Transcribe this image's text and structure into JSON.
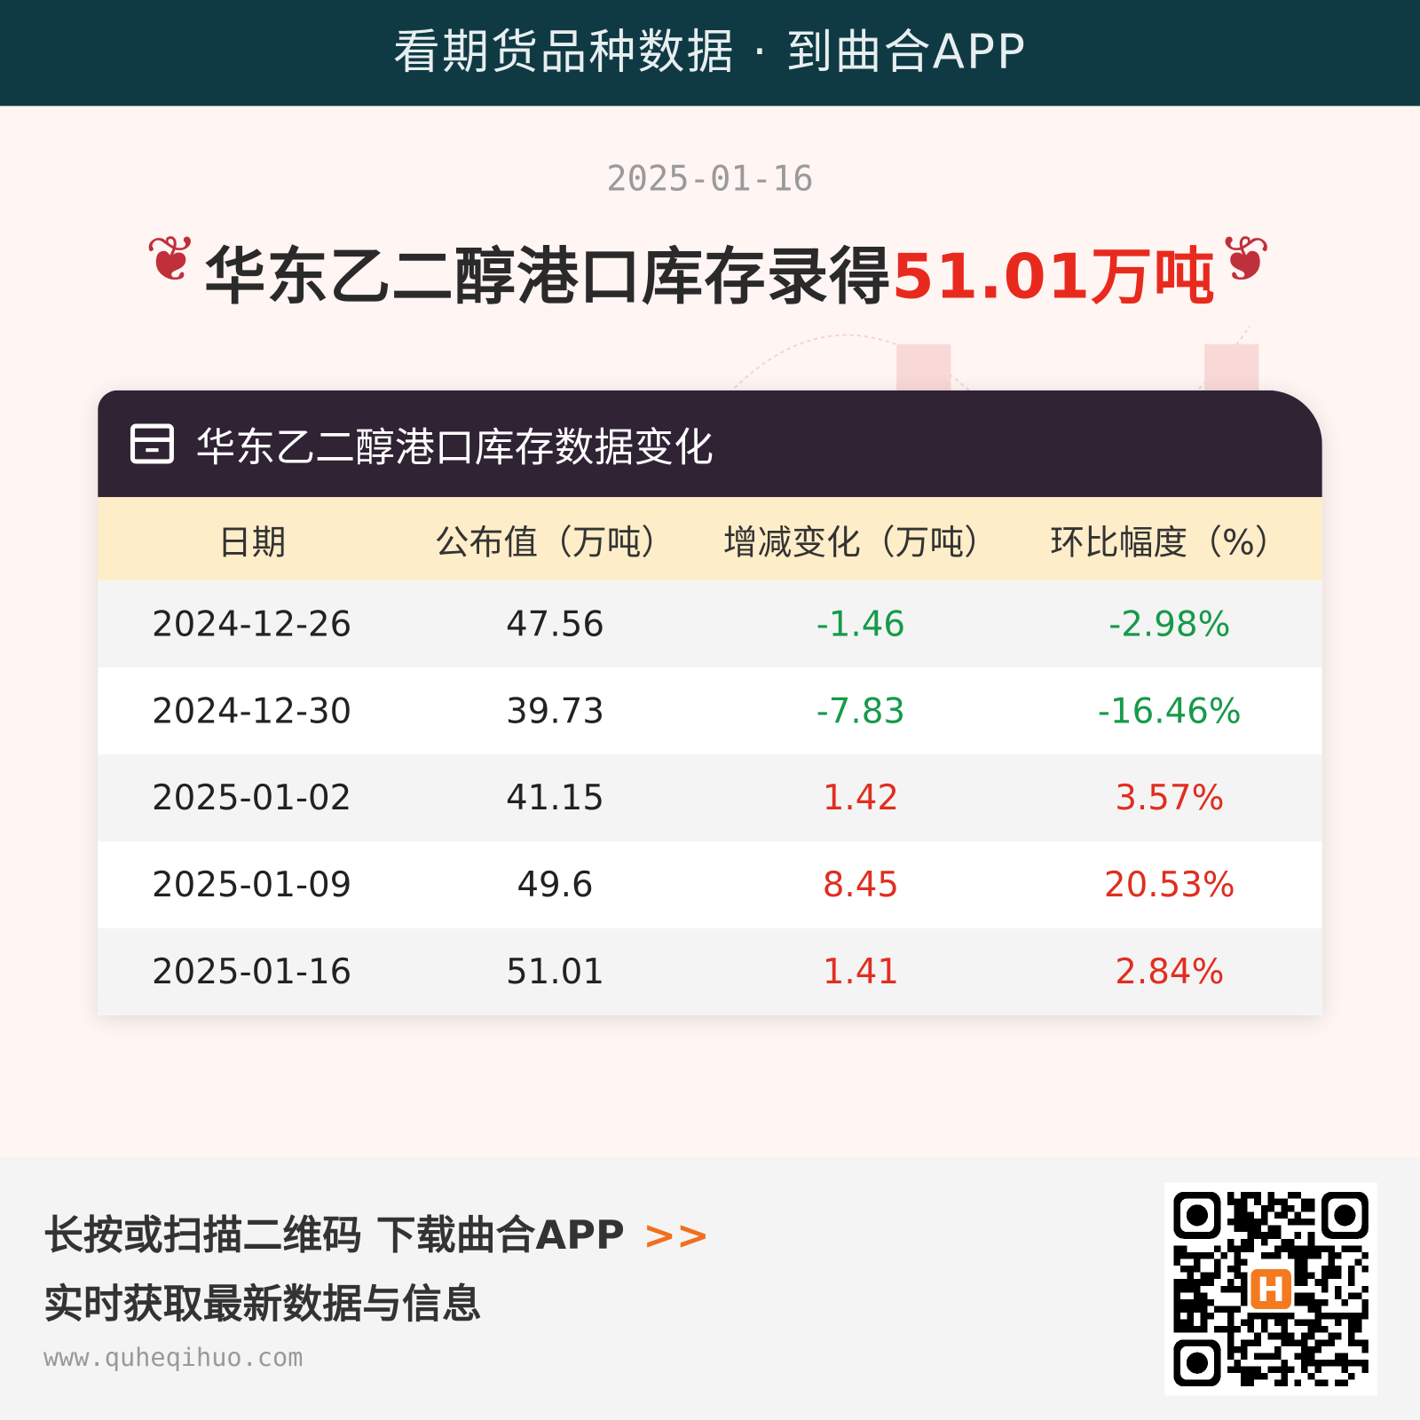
{
  "banner": "看期货品种数据 · 到曲合APP",
  "date": "2025-01-16",
  "headline": {
    "prefix": "华东乙二醇港口库存录得",
    "value": "51.01万吨"
  },
  "card": {
    "title": "华东乙二醇港口库存数据变化",
    "icon": "archive-box-icon"
  },
  "table": {
    "headers": [
      "日期",
      "公布值（万吨）",
      "增减变化（万吨）",
      "环比幅度（%）"
    ],
    "rows": [
      {
        "date": "2024-12-26",
        "value": "47.56",
        "change": "-1.46",
        "pct": "-2.98%",
        "trend": "down"
      },
      {
        "date": "2024-12-30",
        "value": "39.73",
        "change": "-7.83",
        "pct": "-16.46%",
        "trend": "down"
      },
      {
        "date": "2025-01-02",
        "value": "41.15",
        "change": "1.42",
        "pct": "3.57%",
        "trend": "up"
      },
      {
        "date": "2025-01-09",
        "value": "49.6",
        "change": "8.45",
        "pct": "20.53%",
        "trend": "up"
      },
      {
        "date": "2025-01-16",
        "value": "51.01",
        "change": "1.41",
        "pct": "2.84%",
        "trend": "up"
      }
    ]
  },
  "colors": {
    "up": "#e02e20",
    "down": "#169a4a",
    "banner": "#0f3a44",
    "card_header": "#2f2334",
    "table_header": "#fdedc8"
  },
  "footer": {
    "line1": "长按或扫描二维码 下载曲合APP",
    "arrow": ">>",
    "line2": "实时获取最新数据与信息",
    "url": "www.quheqihuo.com"
  }
}
